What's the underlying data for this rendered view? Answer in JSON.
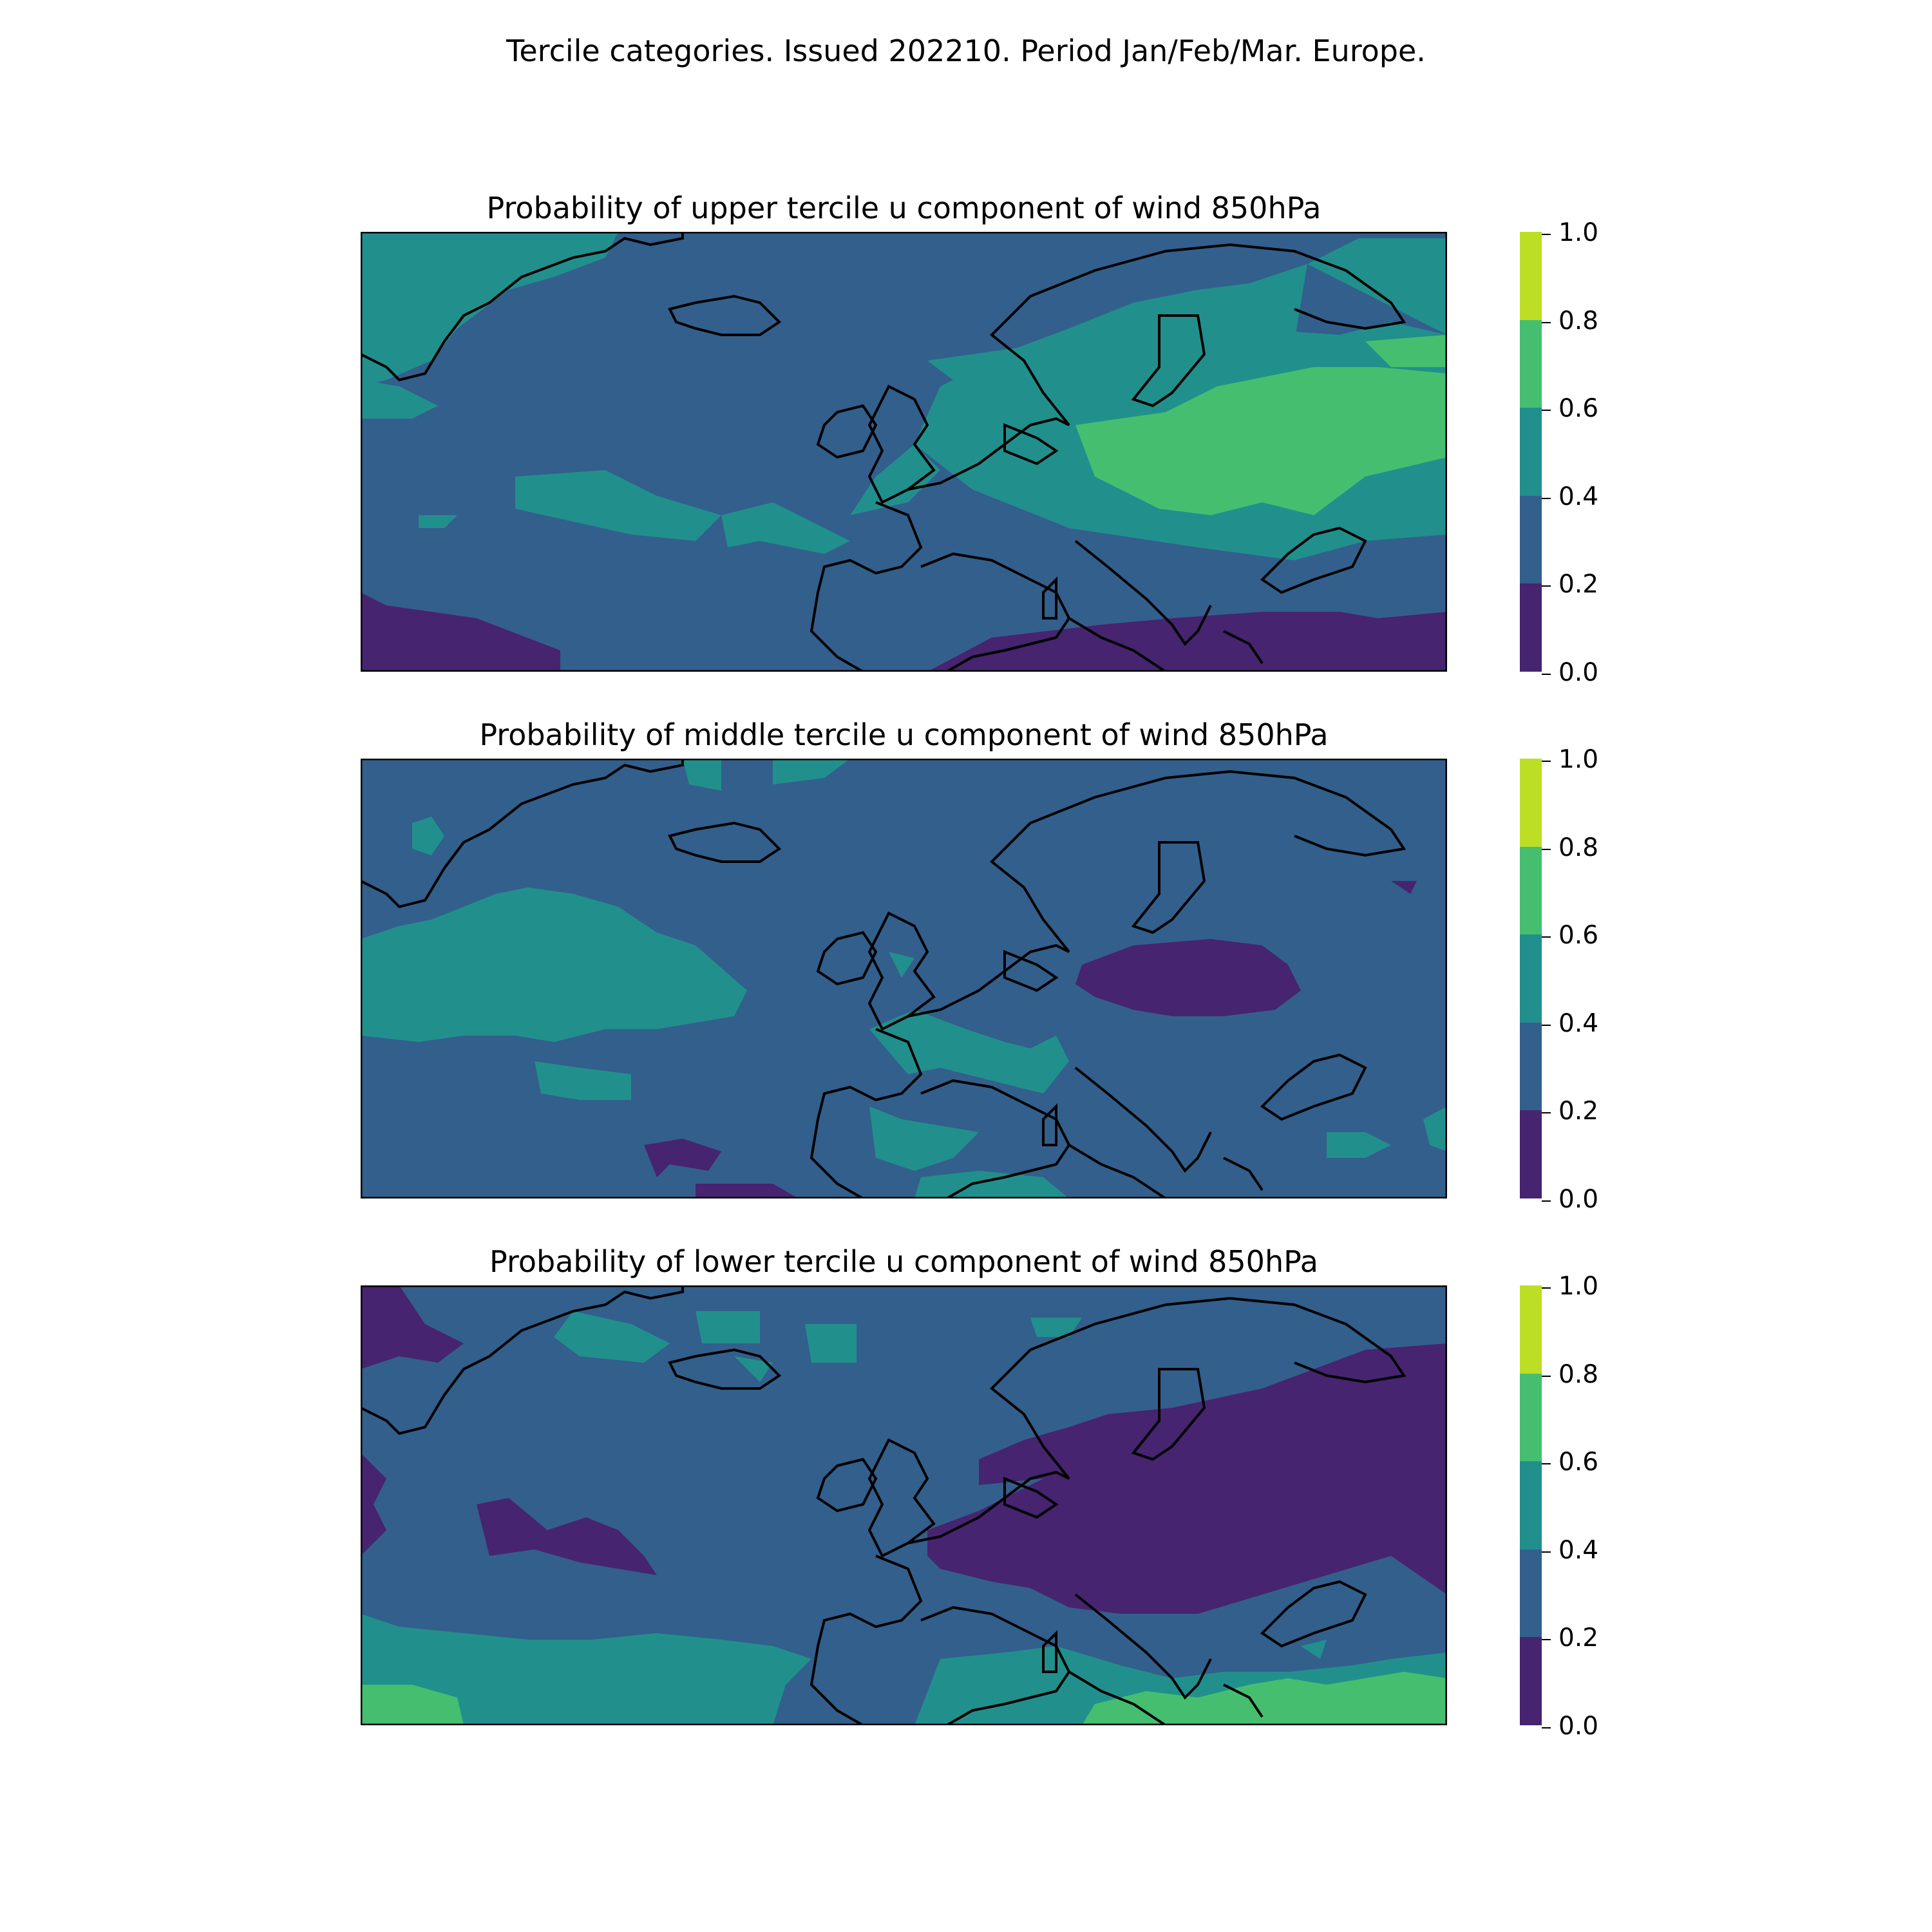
{
  "suptitle": "Tercile categories. Issued 202210. Period Jan/Feb/Mar. Europe.",
  "colorbar": {
    "ticks": [
      "0.0",
      "0.2",
      "0.4",
      "0.6",
      "0.8",
      "1.0"
    ],
    "levels": [
      0.0,
      0.2,
      0.4,
      0.6,
      0.8,
      1.0
    ],
    "colors": [
      "#46246f",
      "#335f8c",
      "#21908d",
      "#45bf6f",
      "#bcdf26"
    ]
  },
  "panels": [
    {
      "title": "Probability of upper tercile u component of wind 850hPa"
    },
    {
      "title": "Probability of middle tercile u component of wind 850hPa"
    },
    {
      "title": "Probability of lower tercile u component of wind 850hPa"
    }
  ],
  "colors": {
    "coastline": "#000000",
    "frame": "#000000"
  }
}
